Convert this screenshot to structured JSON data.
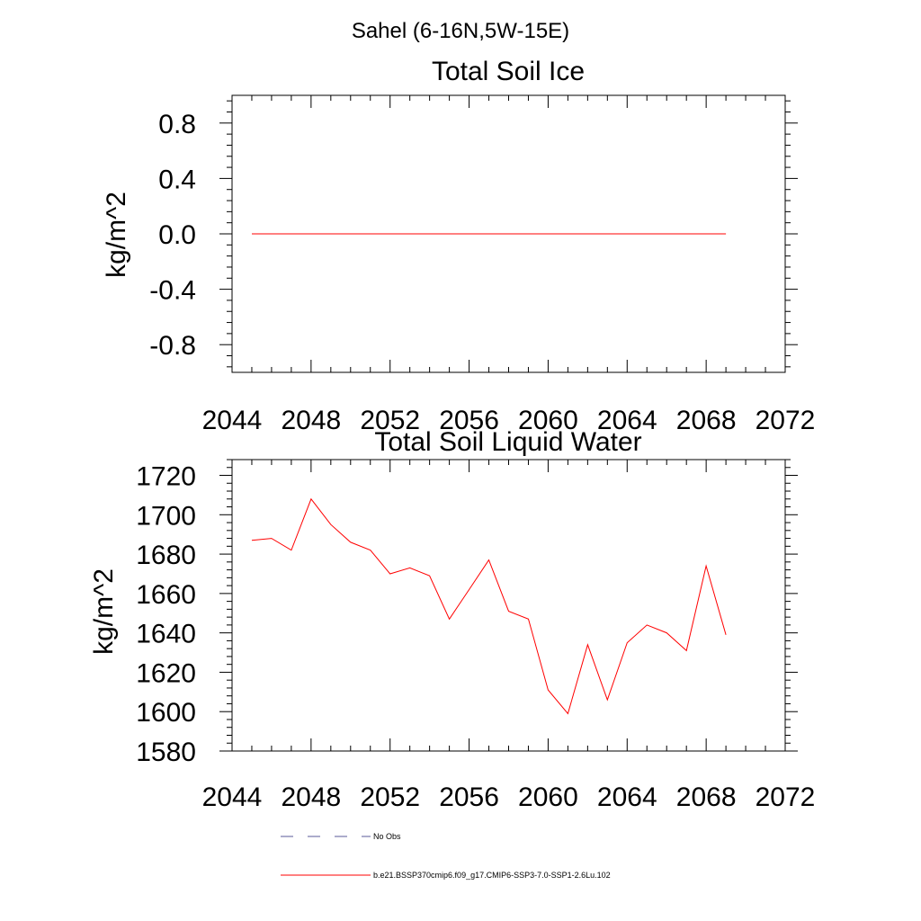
{
  "figure": {
    "suptitle": "Sahel (6-16N,5W-15E)"
  },
  "chart_data": [
    {
      "type": "line",
      "title": "Total Soil Ice",
      "xlabel": "",
      "ylabel": "kg/m^2",
      "xlim": [
        2044,
        2072
      ],
      "ylim": [
        -1.0,
        1.0
      ],
      "xticks": [
        2044,
        2048,
        2052,
        2056,
        2060,
        2064,
        2068,
        2072
      ],
      "xtick_labels": [
        "2044",
        "2048",
        "2052",
        "2056",
        "2060",
        "2064",
        "2068",
        "2072"
      ],
      "yticks": [
        -0.8,
        -0.4,
        0.0,
        0.4,
        0.8
      ],
      "ytick_labels": [
        "-0.8",
        "-0.4",
        "0.0",
        "0.4",
        "0.8"
      ],
      "grid": false,
      "series": [
        {
          "name": "b.e21.BSSP370cmip6.f09_g17.CMIP6-SSP3-7.0-SSP1-2.6Lu.102",
          "color": "#ff0000",
          "x": [
            2045,
            2046,
            2047,
            2048,
            2049,
            2050,
            2051,
            2052,
            2053,
            2054,
            2055,
            2056,
            2057,
            2058,
            2059,
            2060,
            2061,
            2062,
            2063,
            2064,
            2065,
            2066,
            2067,
            2068,
            2069
          ],
          "y": [
            0,
            0,
            0,
            0,
            0,
            0,
            0,
            0,
            0,
            0,
            0,
            0,
            0,
            0,
            0,
            0,
            0,
            0,
            0,
            0,
            0,
            0,
            0,
            0,
            0
          ]
        }
      ]
    },
    {
      "type": "line",
      "title": "Total Soil Liquid Water",
      "xlabel": "",
      "ylabel": "kg/m^2",
      "xlim": [
        2044,
        2072
      ],
      "ylim": [
        1580,
        1728
      ],
      "xticks": [
        2044,
        2048,
        2052,
        2056,
        2060,
        2064,
        2068,
        2072
      ],
      "xtick_labels": [
        "2044",
        "2048",
        "2052",
        "2056",
        "2060",
        "2064",
        "2068",
        "2072"
      ],
      "yticks": [
        1580,
        1600,
        1620,
        1640,
        1660,
        1680,
        1700,
        1720
      ],
      "ytick_labels": [
        "1580",
        "1600",
        "1620",
        "1640",
        "1660",
        "1680",
        "1700",
        "1720"
      ],
      "grid": false,
      "series": [
        {
          "name": "b.e21.BSSP370cmip6.f09_g17.CMIP6-SSP3-7.0-SSP1-2.6Lu.102",
          "color": "#ff0000",
          "x": [
            2045,
            2046,
            2047,
            2048,
            2049,
            2050,
            2051,
            2052,
            2053,
            2054,
            2055,
            2056,
            2057,
            2058,
            2059,
            2060,
            2061,
            2062,
            2063,
            2064,
            2065,
            2066,
            2067,
            2068,
            2069
          ],
          "y": [
            1687,
            1688,
            1682,
            1708,
            1695,
            1686,
            1682,
            1670,
            1673,
            1669,
            1647,
            1662,
            1677,
            1651,
            1647,
            1611,
            1599,
            1634,
            1606,
            1635,
            1644,
            1640,
            1631,
            1674,
            1639
          ]
        }
      ]
    }
  ],
  "legend": {
    "placement": "bottom-center",
    "items": [
      {
        "label": "No Obs",
        "color": "#5a5a9a",
        "dash": "dashed"
      },
      {
        "label": "b.e21.BSSP370cmip6.f09_g17.CMIP6-SSP3-7.0-SSP1-2.6Lu.102",
        "color": "#ff0000",
        "dash": "solid"
      }
    ]
  }
}
